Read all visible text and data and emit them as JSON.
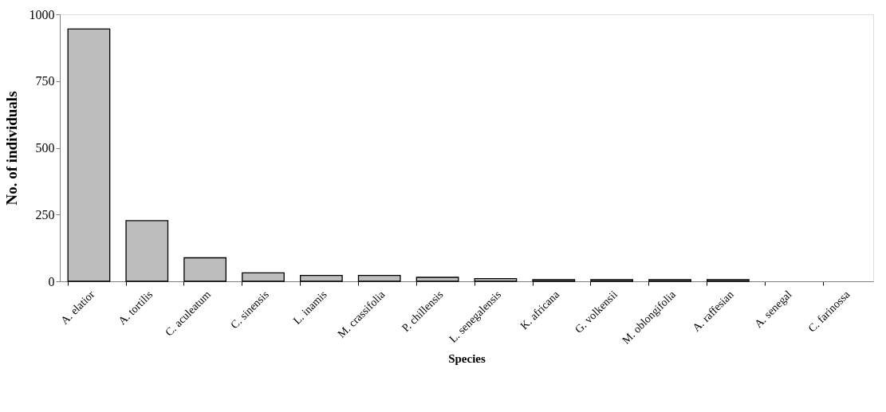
{
  "chart_data": {
    "type": "bar",
    "xlabel": "Species",
    "ylabel": "No. of individuals",
    "categories": [
      "A. elatior",
      "A. tortilis",
      "C. aculeatum",
      "C. sinensis",
      "L. inamis",
      "M. crassifolia",
      "P. chillensis",
      "L. senegalensis",
      "K. africana",
      "G. volkensii",
      "M. oblongifolia",
      "A. raffesian",
      "A. senegal",
      "C. farinossa"
    ],
    "values": [
      945,
      227,
      88,
      32,
      22,
      22,
      15,
      10,
      6,
      6,
      6,
      6,
      0,
      0
    ],
    "color": "#bdbdbd",
    "ylim": [
      0,
      1000
    ],
    "yticks": [
      0,
      250,
      500,
      750,
      1000
    ],
    "grid": false
  }
}
